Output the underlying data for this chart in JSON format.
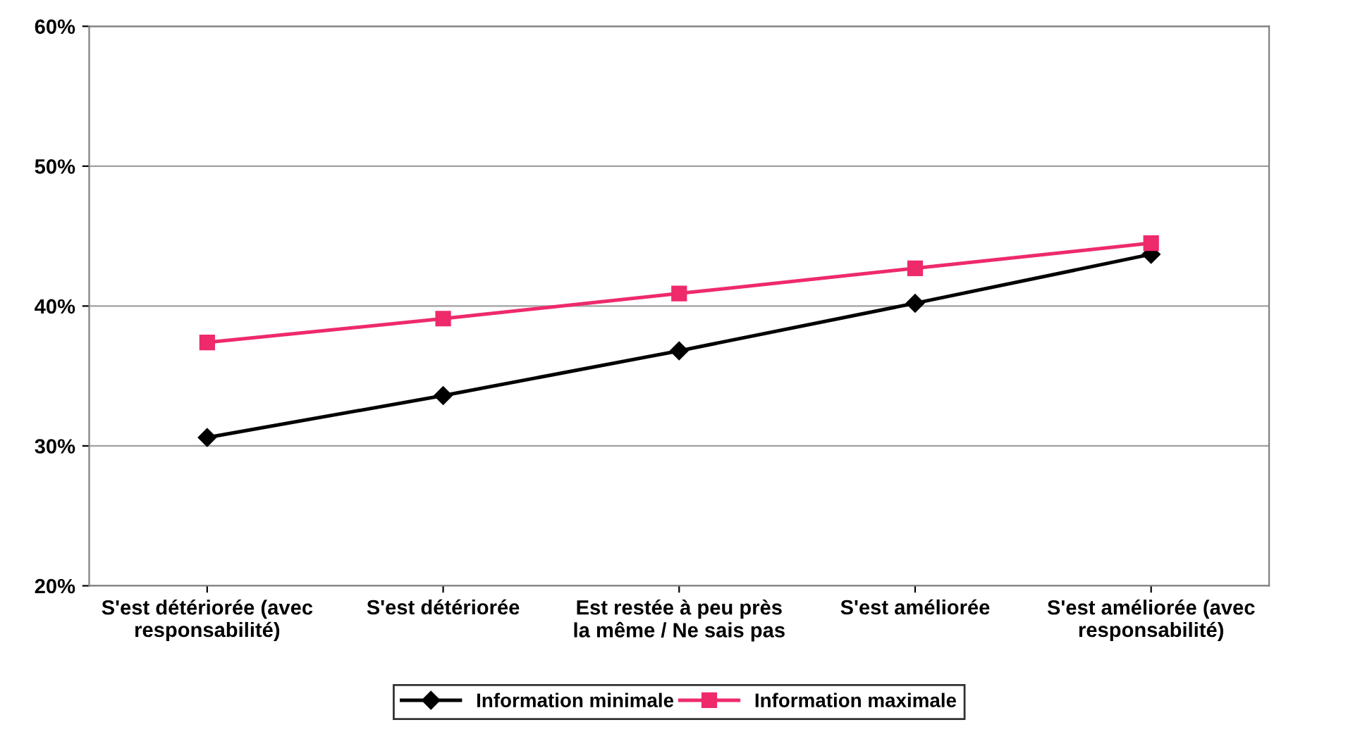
{
  "chart_data": {
    "type": "line",
    "categories": [
      "S'est détériorée (avec\nresponsabilité)",
      "S'est détériorée",
      "Est restée à peu près\nla même / Ne sais pas",
      "S'est améliorée",
      "S'est améliorée (avec\nresponsabilité)"
    ],
    "series": [
      {
        "name": "Information minimale",
        "color": "#000000",
        "marker": "diamond",
        "values": [
          30.6,
          33.6,
          36.8,
          40.2,
          43.7
        ]
      },
      {
        "name": "Information maximale",
        "color": "#ee2a6b",
        "marker": "square",
        "values": [
          37.4,
          39.1,
          40.9,
          42.7,
          44.5
        ]
      }
    ],
    "ylim": [
      20,
      60
    ],
    "yticks": [
      {
        "value": 20,
        "label": "20%"
      },
      {
        "value": 30,
        "label": "30%"
      },
      {
        "value": 40,
        "label": "40%"
      },
      {
        "value": 50,
        "label": "50%"
      },
      {
        "value": 60,
        "label": "60%"
      }
    ],
    "grid": "y",
    "legend": "bottom"
  }
}
